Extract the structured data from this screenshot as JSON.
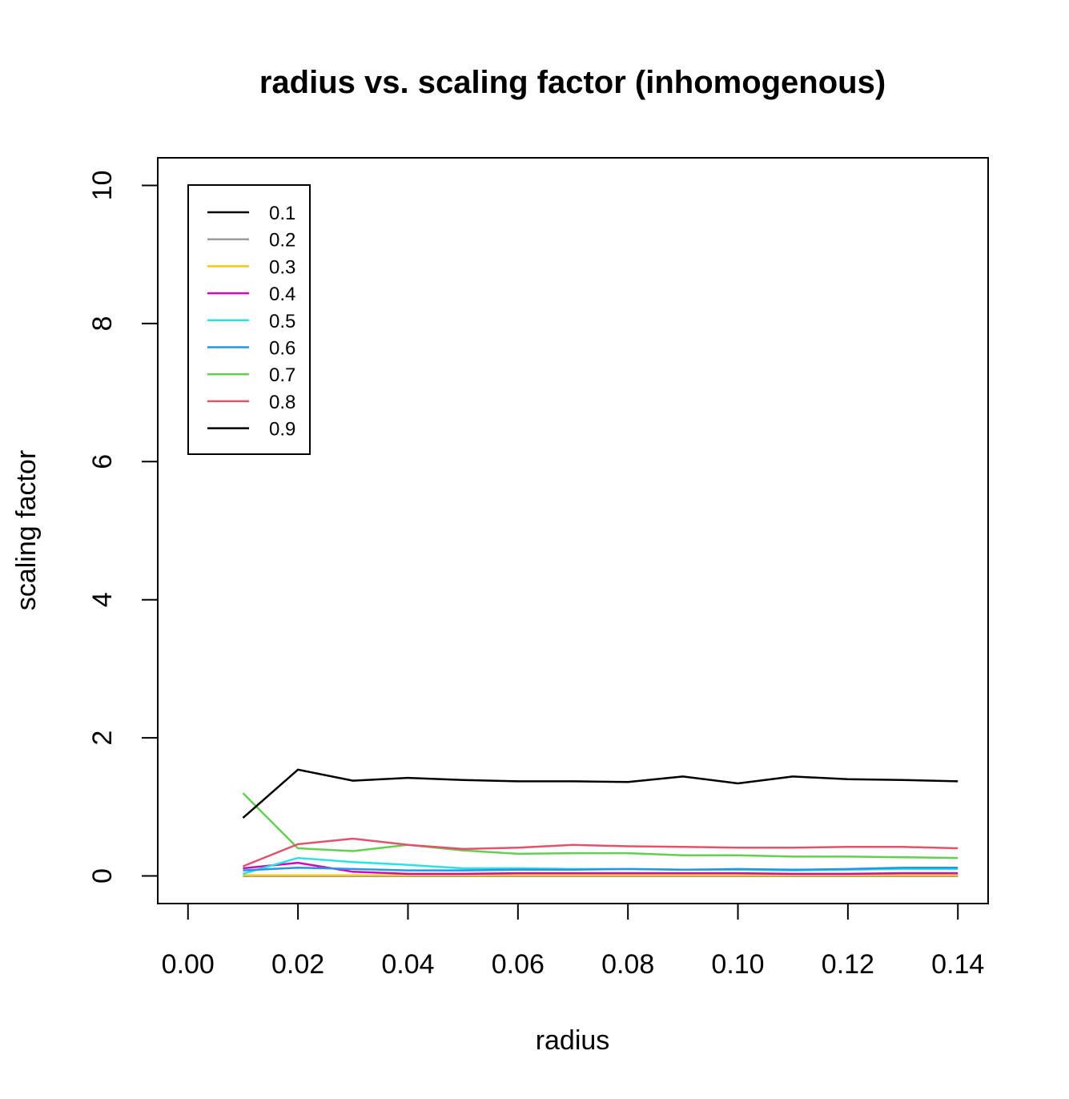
{
  "chart_data": {
    "type": "line",
    "title": "radius vs. scaling factor (inhomogenous)",
    "xlabel": "radius",
    "ylabel": "scaling factor",
    "xlim": [
      -0.0055,
      0.1455
    ],
    "ylim": [
      -0.4,
      10.4
    ],
    "xticks": [
      0.0,
      0.02,
      0.04,
      0.06,
      0.08,
      0.1,
      0.12,
      0.14
    ],
    "xtick_labels": [
      "0.00",
      "0.02",
      "0.04",
      "0.06",
      "0.08",
      "0.10",
      "0.12",
      "0.14"
    ],
    "yticks": [
      0,
      2,
      4,
      6,
      8,
      10
    ],
    "ytick_labels": [
      "0",
      "2",
      "4",
      "6",
      "8",
      "10"
    ],
    "grid": false,
    "legend_position": "top-left",
    "x": [
      0.01,
      0.02,
      0.03,
      0.04,
      0.05,
      0.06,
      0.07,
      0.08,
      0.09,
      0.1,
      0.11,
      0.12,
      0.13,
      0.14
    ],
    "series": [
      {
        "name": "0.1",
        "color": "#000000",
        "values": [
          0.0,
          0.0,
          0.0,
          0.0,
          0.0,
          0.0,
          0.0,
          0.0,
          0.0,
          0.0,
          0.0,
          0.0,
          0.0,
          0.0
        ]
      },
      {
        "name": "0.2",
        "color": "#9e9e9e",
        "values": [
          0.0,
          0.0,
          0.0,
          0.0,
          0.0,
          0.0,
          0.0,
          0.0,
          0.0,
          0.0,
          0.0,
          0.0,
          0.0,
          0.0
        ]
      },
      {
        "name": "0.3",
        "color": "#f5c710",
        "values": [
          0.01,
          0.01,
          0.01,
          0.01,
          0.01,
          0.01,
          0.01,
          0.01,
          0.01,
          0.01,
          0.01,
          0.01,
          0.01,
          0.01
        ]
      },
      {
        "name": "0.4",
        "color": "#cd0bbc",
        "values": [
          0.11,
          0.19,
          0.06,
          0.03,
          0.03,
          0.04,
          0.04,
          0.04,
          0.04,
          0.04,
          0.03,
          0.03,
          0.04,
          0.04
        ]
      },
      {
        "name": "0.5",
        "color": "#28e2e5",
        "values": [
          0.03,
          0.26,
          0.2,
          0.16,
          0.11,
          0.11,
          0.1,
          0.1,
          0.09,
          0.09,
          0.08,
          0.09,
          0.1,
          0.1
        ]
      },
      {
        "name": "0.6",
        "color": "#2297e6",
        "values": [
          0.08,
          0.12,
          0.1,
          0.08,
          0.08,
          0.09,
          0.09,
          0.1,
          0.09,
          0.1,
          0.09,
          0.1,
          0.12,
          0.12
        ]
      },
      {
        "name": "0.7",
        "color": "#61d04f",
        "values": [
          1.2,
          0.4,
          0.36,
          0.45,
          0.37,
          0.32,
          0.33,
          0.33,
          0.3,
          0.3,
          0.28,
          0.28,
          0.27,
          0.26
        ]
      },
      {
        "name": "0.8",
        "color": "#df536b",
        "values": [
          0.14,
          0.46,
          0.54,
          0.45,
          0.39,
          0.41,
          0.45,
          0.43,
          0.42,
          0.41,
          0.41,
          0.42,
          0.42,
          0.4
        ]
      },
      {
        "name": "0.9",
        "color": "#000000",
        "values": [
          0.84,
          1.54,
          1.38,
          1.42,
          1.39,
          1.37,
          1.37,
          1.36,
          1.44,
          1.34,
          1.44,
          1.4,
          1.39,
          1.37
        ]
      }
    ]
  }
}
